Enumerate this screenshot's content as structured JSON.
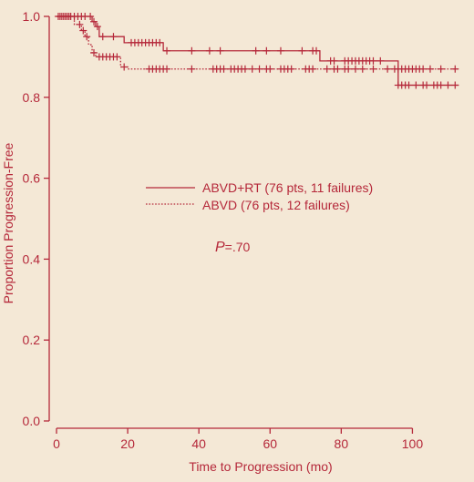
{
  "chart_data": {
    "type": "line",
    "xlabel": "Time to Progression  (mo)",
    "ylabel": "Proportion Progression-Free",
    "xlim": [
      0,
      115
    ],
    "ylim": [
      0,
      1.0
    ],
    "x_ticks": [
      "0",
      "20",
      "40",
      "60",
      "80",
      "100"
    ],
    "x_tick_values": [
      0,
      20,
      40,
      60,
      80,
      100
    ],
    "y_ticks": [
      "0.0",
      "0.2",
      "0.4",
      "0.6",
      "0.8",
      "1.0"
    ],
    "y_tick_values": [
      0.0,
      0.2,
      0.4,
      0.6,
      0.8,
      1.0
    ],
    "annotation": {
      "prefix": "P",
      "value": "=.70"
    },
    "legend_position": "center",
    "colors": {
      "background": "#f4e8d6",
      "ink": "#b5283a"
    },
    "series": [
      {
        "name": "ABVD+RT (76 pts, 11 failures)",
        "style": "solid",
        "steps": [
          [
            0,
            1.0
          ],
          [
            10,
            0.987
          ],
          [
            11,
            0.975
          ],
          [
            12,
            0.95
          ],
          [
            19,
            0.935
          ],
          [
            30,
            0.915
          ],
          [
            74,
            0.89
          ],
          [
            96,
            0.83
          ],
          [
            113,
            0.83
          ]
        ],
        "censored": [
          0.5,
          1.5,
          2.5,
          3.5,
          5,
          6,
          7,
          8,
          9.5,
          10.5,
          11.5,
          13,
          16,
          21,
          22,
          23,
          24,
          25,
          26,
          27,
          28,
          29,
          31,
          38,
          43,
          46,
          56,
          59,
          63,
          69,
          72,
          73,
          77,
          78,
          81,
          82,
          83,
          84,
          85,
          86,
          87,
          88,
          89,
          91,
          96,
          97,
          98,
          99,
          101,
          103,
          104,
          106,
          107,
          108,
          110,
          112
        ]
      },
      {
        "name": "ABVD (76 pts, 12 failures)",
        "style": "dotted",
        "steps": [
          [
            0,
            1.0
          ],
          [
            5,
            0.98
          ],
          [
            7,
            0.965
          ],
          [
            8,
            0.95
          ],
          [
            9,
            0.93
          ],
          [
            10,
            0.91
          ],
          [
            11,
            0.9
          ],
          [
            18,
            0.875
          ],
          [
            20,
            0.87
          ],
          [
            113,
            0.87
          ]
        ],
        "censored": [
          1,
          2,
          3,
          4,
          6.5,
          7.5,
          8.5,
          10.5,
          12,
          13,
          14,
          15,
          16,
          17,
          19,
          26,
          27,
          28,
          29,
          30,
          31,
          38,
          44,
          45,
          46,
          47,
          49,
          50,
          51,
          52,
          53,
          55,
          57,
          59,
          60,
          63,
          64,
          65,
          66,
          70,
          71,
          72,
          76,
          78,
          79,
          81,
          82,
          84,
          86,
          89,
          93,
          95,
          96,
          97,
          98,
          99,
          100,
          101,
          102,
          103,
          105,
          108,
          112
        ]
      }
    ]
  }
}
